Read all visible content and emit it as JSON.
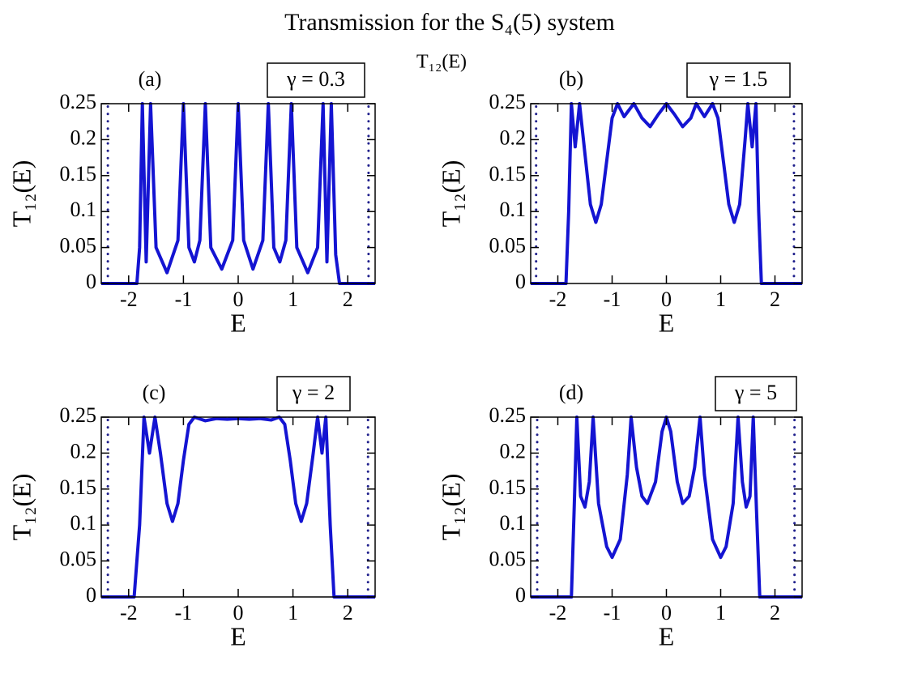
{
  "title": "Transmission for the S₄(5) system",
  "subtitle": "T₁₂(E)",
  "chart_data": [
    {
      "type": "line",
      "label": "(a)",
      "annotation": "γ = 0.3",
      "xlabel": "E",
      "ylabel": "T₁₂(E)",
      "xlim": [
        -2.5,
        2.5
      ],
      "ylim": [
        0,
        0.25
      ],
      "xticks": [
        -2,
        -1,
        0,
        1,
        2
      ],
      "yticks": [
        0,
        0.05,
        0.1,
        0.15,
        0.2,
        0.25
      ],
      "series": [
        {
          "color": "#1414d2",
          "style": "solid",
          "x": [
            -2.5,
            -1.85,
            -1.8,
            -1.75,
            -1.68,
            -1.6,
            -1.5,
            -1.3,
            -1.1,
            -1.0,
            -0.9,
            -0.8,
            -0.7,
            -0.6,
            -0.5,
            -0.3,
            -0.1,
            0,
            0.1,
            0.27,
            0.45,
            0.55,
            0.65,
            0.76,
            0.87,
            0.97,
            1.07,
            1.27,
            1.45,
            1.55,
            1.62,
            1.7,
            1.78,
            1.85,
            2.5
          ],
          "values": [
            0,
            0,
            0.05,
            0.25,
            0.03,
            0.25,
            0.05,
            0.015,
            0.06,
            0.25,
            0.05,
            0.03,
            0.06,
            0.25,
            0.05,
            0.02,
            0.06,
            0.25,
            0.06,
            0.02,
            0.06,
            0.25,
            0.05,
            0.03,
            0.06,
            0.25,
            0.05,
            0.015,
            0.05,
            0.25,
            0.03,
            0.25,
            0.04,
            0,
            0
          ]
        },
        {
          "color": "#20208c",
          "style": "dotted",
          "x": [
            -2.38,
            -2.38
          ],
          "values": [
            0,
            0.25
          ]
        },
        {
          "color": "#20208c",
          "style": "dotted",
          "x": [
            2.38,
            2.38
          ],
          "values": [
            0,
            0.25
          ]
        }
      ]
    },
    {
      "type": "line",
      "label": "(b)",
      "annotation": "γ = 1.5",
      "xlabel": "E",
      "ylabel": "T₁₂(E)",
      "xlim": [
        -2.5,
        2.5
      ],
      "ylim": [
        0,
        0.25
      ],
      "xticks": [
        -2,
        -1,
        0,
        1,
        2
      ],
      "yticks": [
        0,
        0.05,
        0.1,
        0.15,
        0.2,
        0.25
      ],
      "series": [
        {
          "color": "#1414d2",
          "style": "solid",
          "x": [
            -2.5,
            -1.85,
            -1.8,
            -1.75,
            -1.68,
            -1.6,
            -1.5,
            -1.4,
            -1.3,
            -1.2,
            -1.1,
            -1.0,
            -0.9,
            -0.78,
            -0.6,
            -0.45,
            -0.3,
            -0.15,
            0,
            0.15,
            0.3,
            0.45,
            0.55,
            0.7,
            0.85,
            0.95,
            1.05,
            1.15,
            1.25,
            1.35,
            1.45,
            1.5,
            1.58,
            1.65,
            1.7,
            1.75,
            2.5
          ],
          "values": [
            0,
            0,
            0.1,
            0.25,
            0.19,
            0.25,
            0.18,
            0.11,
            0.085,
            0.11,
            0.17,
            0.23,
            0.25,
            0.232,
            0.25,
            0.23,
            0.218,
            0.235,
            0.25,
            0.235,
            0.218,
            0.23,
            0.25,
            0.232,
            0.25,
            0.23,
            0.17,
            0.11,
            0.085,
            0.11,
            0.2,
            0.25,
            0.19,
            0.25,
            0.1,
            0,
            0
          ]
        },
        {
          "color": "#20208c",
          "style": "dotted",
          "x": [
            -2.4,
            -2.4
          ],
          "values": [
            0,
            0.25
          ]
        },
        {
          "color": "#20208c",
          "style": "dotted",
          "x": [
            2.35,
            2.35
          ],
          "values": [
            0,
            0.25
          ]
        }
      ]
    },
    {
      "type": "line",
      "label": "(c)",
      "annotation": "γ = 2",
      "xlabel": "E",
      "ylabel": "T₁₂(E)",
      "xlim": [
        -2.5,
        2.5
      ],
      "ylim": [
        0,
        0.25
      ],
      "xticks": [
        -2,
        -1,
        0,
        1,
        2
      ],
      "yticks": [
        0,
        0.05,
        0.1,
        0.15,
        0.2,
        0.25
      ],
      "series": [
        {
          "color": "#1414d2",
          "style": "solid",
          "x": [
            -2.5,
            -1.9,
            -1.8,
            -1.72,
            -1.62,
            -1.52,
            -1.42,
            -1.3,
            -1.2,
            -1.1,
            -1.0,
            -0.9,
            -0.8,
            -0.6,
            -0.4,
            -0.2,
            0,
            0.2,
            0.4,
            0.6,
            0.75,
            0.85,
            0.95,
            1.05,
            1.15,
            1.25,
            1.37,
            1.45,
            1.53,
            1.6,
            1.68,
            1.75,
            2.5
          ],
          "values": [
            0,
            0,
            0.1,
            0.25,
            0.2,
            0.25,
            0.2,
            0.13,
            0.105,
            0.13,
            0.19,
            0.24,
            0.25,
            0.245,
            0.248,
            0.247,
            0.248,
            0.247,
            0.248,
            0.246,
            0.25,
            0.24,
            0.19,
            0.13,
            0.105,
            0.13,
            0.2,
            0.25,
            0.2,
            0.25,
            0.1,
            0,
            0
          ]
        },
        {
          "color": "#20208c",
          "style": "dotted",
          "x": [
            -2.38,
            -2.38
          ],
          "values": [
            0,
            0.25
          ]
        },
        {
          "color": "#20208c",
          "style": "dotted",
          "x": [
            2.37,
            2.37
          ],
          "values": [
            0,
            0.25
          ]
        }
      ]
    },
    {
      "type": "line",
      "label": "(d)",
      "annotation": "γ = 5",
      "xlabel": "E",
      "ylabel": "T₁₂(E)",
      "xlim": [
        -2.5,
        2.5
      ],
      "ylim": [
        0,
        0.25
      ],
      "xticks": [
        -2,
        -1,
        0,
        1,
        2
      ],
      "yticks": [
        0,
        0.05,
        0.1,
        0.15,
        0.2,
        0.25
      ],
      "series": [
        {
          "color": "#1414d2",
          "style": "solid",
          "x": [
            -2.5,
            -1.75,
            -1.7,
            -1.65,
            -1.58,
            -1.5,
            -1.42,
            -1.35,
            -1.25,
            -1.1,
            -1.0,
            -0.85,
            -0.72,
            -0.65,
            -0.55,
            -0.45,
            -0.35,
            -0.2,
            -0.08,
            0,
            0.08,
            0.2,
            0.3,
            0.42,
            0.52,
            0.62,
            0.7,
            0.85,
            1.0,
            1.1,
            1.23,
            1.32,
            1.4,
            1.47,
            1.54,
            1.6,
            1.66,
            1.72,
            2.5
          ],
          "values": [
            0,
            0,
            0.12,
            0.25,
            0.14,
            0.125,
            0.16,
            0.25,
            0.13,
            0.07,
            0.055,
            0.08,
            0.17,
            0.25,
            0.18,
            0.14,
            0.13,
            0.16,
            0.23,
            0.25,
            0.23,
            0.16,
            0.13,
            0.14,
            0.18,
            0.25,
            0.17,
            0.08,
            0.055,
            0.07,
            0.13,
            0.25,
            0.16,
            0.125,
            0.14,
            0.25,
            0.12,
            0,
            0
          ]
        },
        {
          "color": "#20208c",
          "style": "dotted",
          "x": [
            -2.38,
            -2.38
          ],
          "values": [
            0,
            0.25
          ]
        },
        {
          "color": "#20208c",
          "style": "dotted",
          "x": [
            2.36,
            2.36
          ],
          "values": [
            0,
            0.25
          ]
        }
      ]
    }
  ]
}
